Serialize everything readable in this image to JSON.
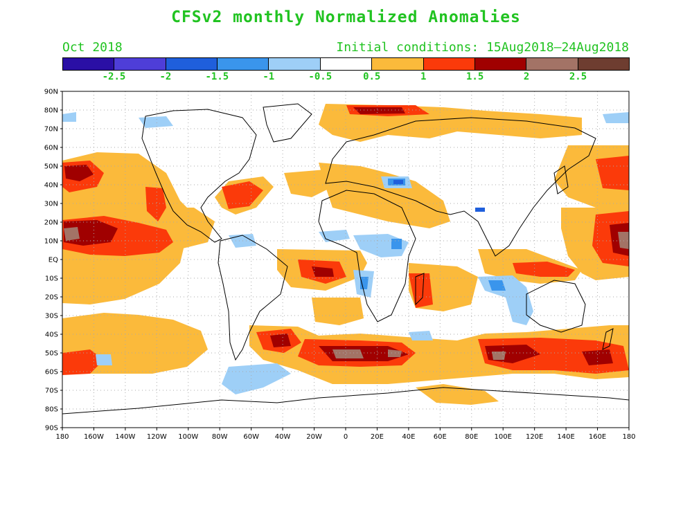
{
  "title": "CFSv2 monthly Normalized Anomalies",
  "subtitle_left": "Oct 2018",
  "subtitle_right": "Initial conditions: 15Aug2018–24Aug2018",
  "colorbar": {
    "colors": [
      "#2a0fa5",
      "#4e3ed8",
      "#1f5fdc",
      "#3a95ec",
      "#9ecff7",
      "#ffffff",
      "#fbba3b",
      "#fb3a0a",
      "#a00000",
      "#a37366",
      "#6e3d30"
    ],
    "labels": [
      "-2.5",
      "-2",
      "-1.5",
      "-1",
      "-0.5",
      "0.5",
      "1",
      "1.5",
      "2",
      "2.5"
    ]
  },
  "map": {
    "lat_labels": [
      "90N",
      "80N",
      "70N",
      "60N",
      "50N",
      "40N",
      "30N",
      "20N",
      "10N",
      "EQ",
      "10S",
      "20S",
      "30S",
      "40S",
      "50S",
      "60S",
      "70S",
      "80S",
      "90S"
    ],
    "lon_labels": [
      "180",
      "160W",
      "140W",
      "120W",
      "100W",
      "80W",
      "60W",
      "40W",
      "20W",
      "0",
      "20E",
      "40E",
      "60E",
      "80E",
      "100E",
      "120E",
      "140E",
      "160E",
      "180"
    ],
    "units": "normalized anomaly"
  }
}
